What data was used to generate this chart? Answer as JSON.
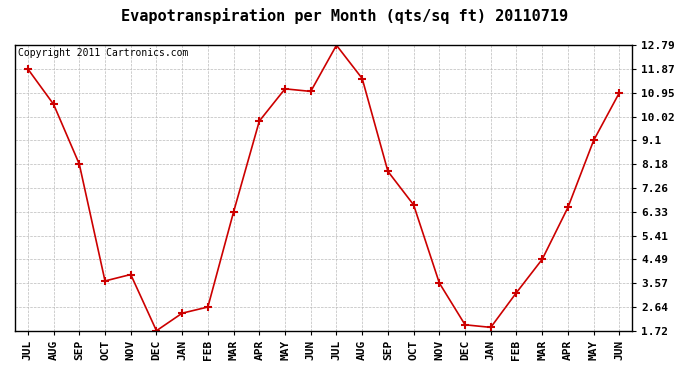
{
  "title": "Evapotranspiration per Month (qts/sq ft) 20110719",
  "copyright": "Copyright 2011 Cartronics.com",
  "x_labels": [
    "JUL",
    "AUG",
    "SEP",
    "OCT",
    "NOV",
    "DEC",
    "JAN",
    "FEB",
    "MAR",
    "APR",
    "MAY",
    "JUN",
    "JUL",
    "AUG",
    "SEP",
    "OCT",
    "NOV",
    "DEC",
    "JAN",
    "FEB",
    "MAR",
    "APR",
    "MAY",
    "JUN"
  ],
  "y_values": [
    11.87,
    10.5,
    8.18,
    3.65,
    3.9,
    1.72,
    2.4,
    2.64,
    6.33,
    9.85,
    11.1,
    11.0,
    12.79,
    11.5,
    7.9,
    6.6,
    3.57,
    1.95,
    1.85,
    3.2,
    4.49,
    6.5,
    9.1,
    10.95
  ],
  "y_ticks": [
    1.72,
    2.64,
    3.57,
    4.49,
    5.41,
    6.33,
    7.26,
    8.18,
    9.1,
    10.02,
    10.95,
    11.87,
    12.79
  ],
  "line_color": "#cc0000",
  "marker": "+",
  "marker_size": 6,
  "marker_color": "#cc0000",
  "bg_color": "#ffffff",
  "grid_color": "#bbbbbb",
  "title_fontsize": 11,
  "copyright_fontsize": 7,
  "tick_fontsize": 8,
  "ylim": [
    1.72,
    12.79
  ]
}
